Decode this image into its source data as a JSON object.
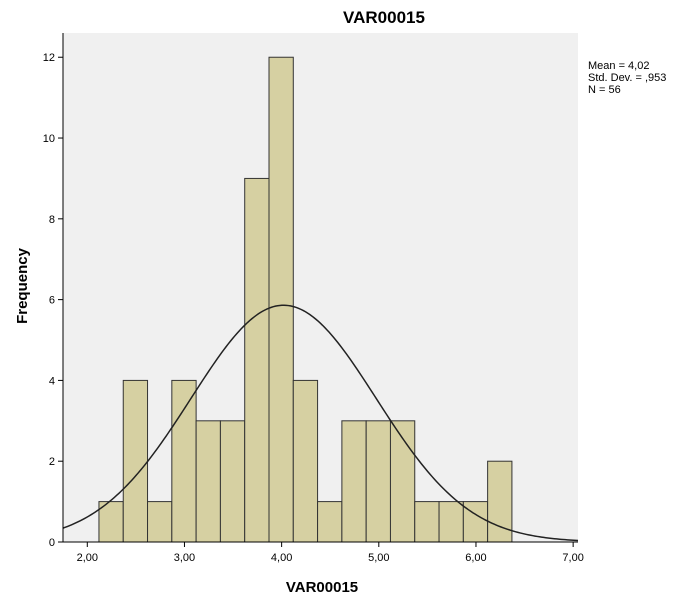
{
  "chart_data": {
    "type": "bar",
    "title": "VAR00015",
    "xlabel": "VAR00015",
    "ylabel": "Frequency",
    "xlim": [
      1.75,
      7.05
    ],
    "ylim": [
      0,
      12.6
    ],
    "x_ticks": [
      2.0,
      3.0,
      4.0,
      5.0,
      6.0,
      7.0
    ],
    "x_tick_labels": [
      "2,00",
      "3,00",
      "4,00",
      "5,00",
      "6,00",
      "7,00"
    ],
    "y_ticks": [
      0,
      2,
      4,
      6,
      8,
      10,
      12
    ],
    "y_tick_labels": [
      "0",
      "2",
      "4",
      "6",
      "8",
      "10",
      "12"
    ],
    "bin_width": 0.25,
    "bin_starts": [
      2.12,
      2.37,
      2.62,
      2.87,
      3.12,
      3.37,
      3.62,
      3.87,
      4.12,
      4.37,
      4.62,
      4.87,
      5.12,
      5.37,
      5.62,
      5.87,
      6.12
    ],
    "values": [
      1,
      4,
      1,
      4,
      3,
      3,
      9,
      12,
      4,
      1,
      3,
      3,
      3,
      1,
      1,
      1,
      2
    ],
    "normal_curve": {
      "mean": 4.02,
      "std_dev": 0.953,
      "n": 56
    },
    "stats_box": [
      "Mean = 4,02",
      "Std. Dev. = ,953",
      "N = 56"
    ],
    "grid": false,
    "colors": {
      "plot_background": "#f0f0f0",
      "bar_fill": "#d6d0a2",
      "bar_stroke": "#333333",
      "curve": "#222222",
      "axis": "#000000"
    }
  }
}
